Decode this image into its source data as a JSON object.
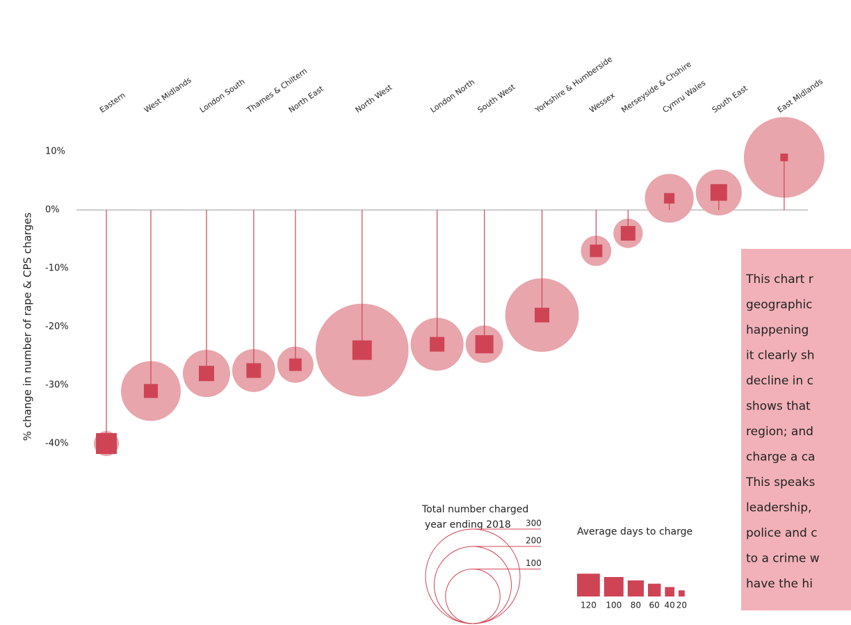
{
  "chart_data": {
    "type": "bubble",
    "y_label": "% change in number of rape & CPS charges",
    "categories": [
      "Eastern",
      "West Midlands",
      "London South",
      "Thames & Chiltern",
      "North East",
      "North West",
      "London North",
      "South West",
      "Yorkshire & Humberside",
      "Wessex",
      "Merseyside & Chshire",
      "Cymru Wales",
      "South East",
      "East Midlands"
    ],
    "values": [
      -40,
      -31,
      -28,
      -27.5,
      -26.5,
      -24,
      -23,
      -23,
      -18,
      -7,
      -4,
      2,
      3,
      9
    ],
    "sizes": [
      21,
      120,
      75,
      62,
      44,
      290,
      94,
      47,
      182,
      31,
      29,
      80,
      71,
      218
    ],
    "days": [
      108,
      67,
      75,
      71,
      58,
      100,
      71,
      92,
      71,
      58,
      71,
      46,
      83,
      29
    ],
    "bubble_color": "#e8a5ab",
    "square_color": "#cf4455",
    "ylim": [
      -48,
      14
    ],
    "yticks": [
      {
        "value": 10,
        "label": "10%"
      },
      {
        "value": 0,
        "label": "0%"
      },
      {
        "value": -10,
        "label": "-10%"
      },
      {
        "value": -20,
        "label": "-20%"
      },
      {
        "value": -30,
        "label": "-30%"
      },
      {
        "value": -40,
        "label": "-40%"
      }
    ],
    "size_legend": {
      "title_lines": [
        "Total number charged",
        "year ending 2018"
      ],
      "values": [
        300,
        200,
        100
      ]
    },
    "days_legend": {
      "title": "Average days to charge",
      "values": [
        120,
        100,
        80,
        60,
        40,
        20
      ]
    },
    "annotation_lines": [
      "This chart r",
      "geographic",
      "happening",
      "it clearly sh",
      "decline in c",
      "shows that",
      "region; and",
      "charge a ca",
      "This speaks",
      "leadership,",
      "police and c",
      "to a crime w",
      "have the hi"
    ]
  }
}
